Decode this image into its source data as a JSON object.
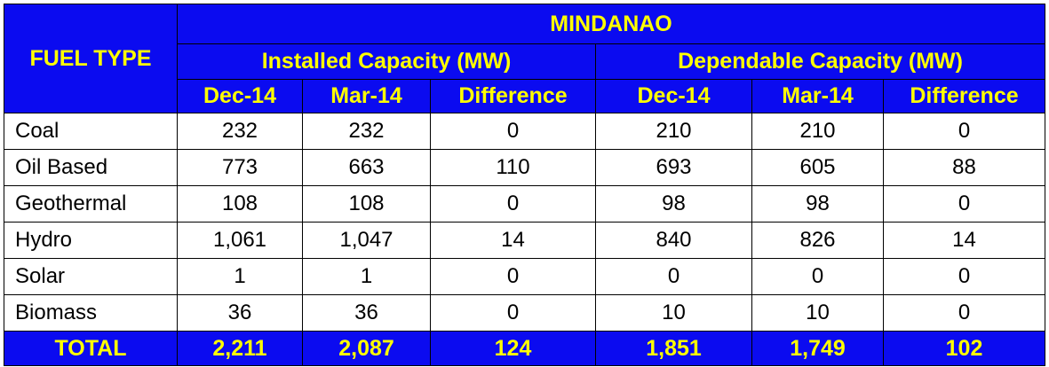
{
  "chart_data": {
    "type": "table",
    "header": {
      "fuel_type": "FUEL TYPE",
      "region": "MINDANAO",
      "groups": [
        "Installed Capacity (MW)",
        "Dependable Capacity (MW)"
      ],
      "columns": [
        "Dec-14",
        "Mar-14",
        "Difference",
        "Dec-14",
        "Mar-14",
        "Difference"
      ]
    },
    "rows": [
      {
        "fuel": "Coal",
        "values": [
          "232",
          "232",
          "0",
          "210",
          "210",
          "0"
        ]
      },
      {
        "fuel": "Oil Based",
        "values": [
          "773",
          "663",
          "110",
          "693",
          "605",
          "88"
        ]
      },
      {
        "fuel": "Geothermal",
        "values": [
          "108",
          "108",
          "0",
          "98",
          "98",
          "0"
        ]
      },
      {
        "fuel": "Hydro",
        "values": [
          "1,061",
          "1,047",
          "14",
          "840",
          "826",
          "14"
        ]
      },
      {
        "fuel": "Solar",
        "values": [
          "1",
          "1",
          "0",
          "0",
          "0",
          "0"
        ]
      },
      {
        "fuel": "Biomass",
        "values": [
          "36",
          "36",
          "0",
          "10",
          "10",
          "0"
        ]
      }
    ],
    "total": {
      "label": "TOTAL",
      "values": [
        "2,211",
        "2,087",
        "124",
        "1,851",
        "1,749",
        "102"
      ]
    }
  },
  "colors": {
    "header_bg": "#0b0bf0",
    "header_text": "#ffff00",
    "body_bg": "#ffffff"
  }
}
